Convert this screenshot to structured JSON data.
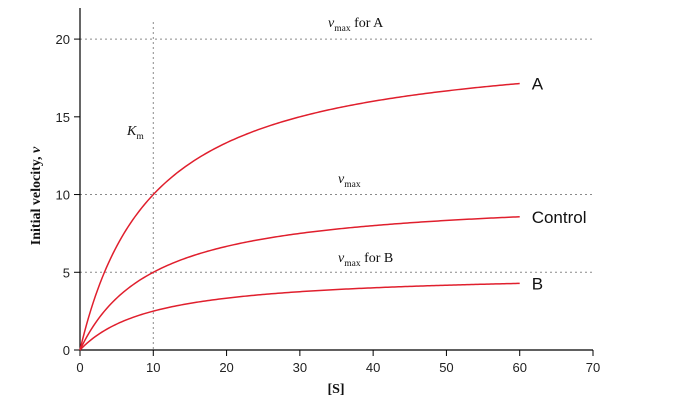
{
  "chart_data": {
    "type": "line",
    "title": "",
    "xlabel": "[S]",
    "ylabel_main": "Initial velocity, ",
    "ylabel_var": "v",
    "xlim": [
      0,
      70
    ],
    "ylim": [
      0,
      22
    ],
    "xticks": [
      0,
      10,
      20,
      30,
      40,
      50,
      60,
      70
    ],
    "yticks": [
      0,
      5,
      10,
      15,
      20
    ],
    "grid": "dotted guide lines at v = 5, 10, 20 and [S] = 10",
    "guides": {
      "horizontal": [
        5,
        10,
        20
      ],
      "vertical": [
        10
      ]
    },
    "x_range_curves": [
      0,
      60
    ],
    "series": [
      {
        "name": "A",
        "vmax": 20,
        "km": 10,
        "color": "#e01f2d"
      },
      {
        "name": "Control",
        "vmax": 10,
        "km": 10,
        "color": "#e01f2d"
      },
      {
        "name": "B",
        "vmax": 5,
        "km": 10,
        "color": "#e01f2d"
      }
    ],
    "annotations": {
      "vmax_A": {
        "v": "v",
        "sub": "max",
        "rest": " for A"
      },
      "vmax": {
        "v": "v",
        "sub": "max",
        "rest": ""
      },
      "vmax_B": {
        "v": "v",
        "sub": "max",
        "rest": " for B"
      },
      "km": {
        "k": "K",
        "sub": "m"
      }
    }
  }
}
